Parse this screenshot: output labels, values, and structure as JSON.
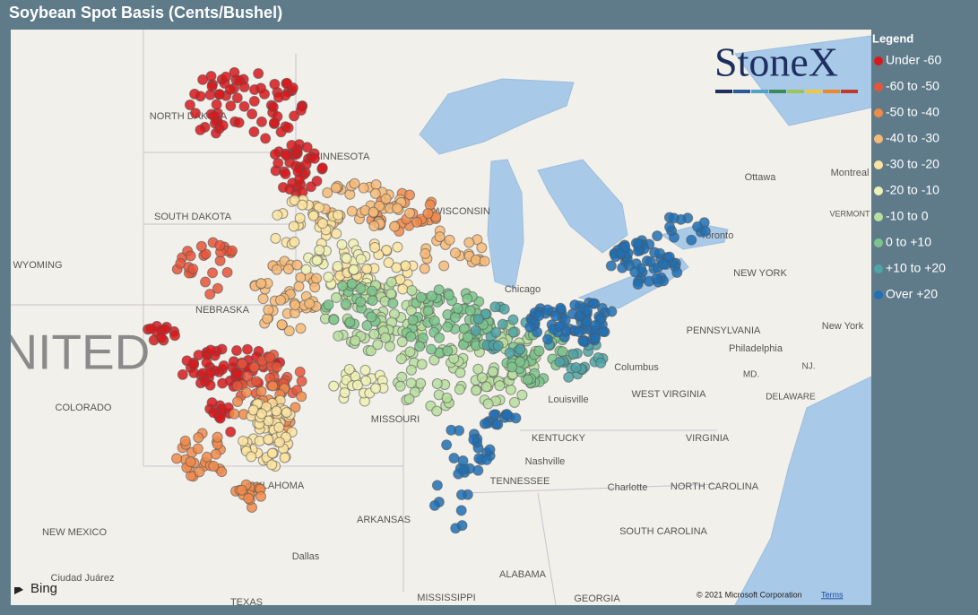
{
  "title": "Soybean Spot Basis (Cents/Bushel)",
  "legend": {
    "title": "Legend",
    "items": [
      {
        "label": "Under -60",
        "color": "#d7191c"
      },
      {
        "label": "-60 to -50",
        "color": "#e6553a"
      },
      {
        "label": "-50 to -40",
        "color": "#f08a4b"
      },
      {
        "label": "-40 to -30",
        "color": "#f6ba78"
      },
      {
        "label": "-30 to -20",
        "color": "#fbe3a0"
      },
      {
        "label": "-20 to -10",
        "color": "#eef1b4"
      },
      {
        "label": "-10 to 0",
        "color": "#b9dea0"
      },
      {
        "label": "0 to +10",
        "color": "#7dc48c"
      },
      {
        "label": "+10 to +20",
        "color": "#4fa3a5"
      },
      {
        "label": "Over +20",
        "color": "#2070b4"
      }
    ]
  },
  "map": {
    "labels": [
      "NORTH DAKOTA",
      "MINNESOTA",
      "SOUTH DAKOTA",
      "WYOMING",
      "NEBRASKA",
      "UNITED",
      "COLORADO",
      "MISSOURI",
      "KENTUCKY",
      "TENNESSEE",
      "ARKANSAS",
      "OKLAHOMA",
      "NEW MEXICO",
      "ALABAMA",
      "MISSISSIPPI",
      "GEORGIA",
      "TEXAS",
      "NORTH CAROLINA",
      "SOUTH CAROLINA",
      "VIRGINIA",
      "WEST VIRGINIA",
      "PENNSYLVANIA",
      "NEW YORK",
      "DELAWARE",
      "MD.",
      "NJ.",
      "WISCONSIN",
      "Chicago",
      "Columbus",
      "Louisville",
      "Nashville",
      "Dallas",
      "Ciudad Juárez",
      "Toronto",
      "Ottawa",
      "Montreal",
      "Philadelphia",
      "New York",
      "Charlotte",
      "VERMONT"
    ],
    "logo": "StoneX",
    "provider": "Bing",
    "copyright": "© 2021 Microsoft Corporation",
    "terms": "Terms"
  }
}
